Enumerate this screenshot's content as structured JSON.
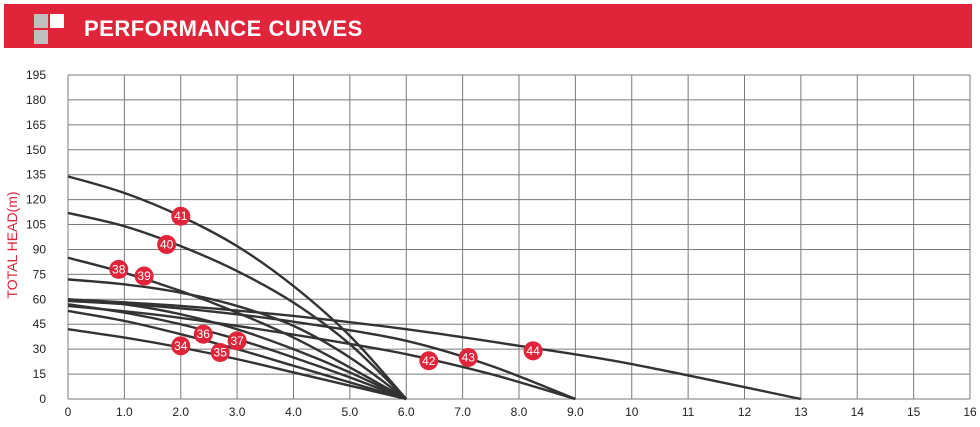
{
  "header": {
    "title": "PERFORMANCE CURVES"
  },
  "colors": {
    "accent": "#e0243a",
    "grid": "#7a7a7a",
    "curve": "#333333",
    "marker": "#e0243a",
    "logo_dark": "#bfbfbf",
    "logo_light": "#ffffff"
  },
  "chart_data": {
    "type": "line",
    "title": "",
    "xlabel": "",
    "ylabel": "TOTAL HEAD(m)",
    "xlim": [
      0,
      16
    ],
    "ylim": [
      0,
      195
    ],
    "grid": true,
    "x_ticks": [
      "0",
      "1.0",
      "2.0",
      "3.0",
      "4.0",
      "5.0",
      "6.0",
      "7.0",
      "8.0",
      "9.0",
      "10",
      "11",
      "12",
      "13",
      "14",
      "15",
      "16"
    ],
    "y_ticks": [
      "0",
      "15",
      "30",
      "45",
      "60",
      "75",
      "90",
      "105",
      "120",
      "135",
      "150",
      "165",
      "180",
      "195"
    ],
    "series": [
      {
        "name": "34",
        "x": [
          0,
          1,
          2,
          3,
          4,
          5,
          6
        ],
        "y": [
          42,
          37,
          31,
          24,
          16,
          8,
          0
        ],
        "label_at": [
          2.0,
          32
        ]
      },
      {
        "name": "35",
        "x": [
          0,
          1,
          2,
          3,
          4,
          5,
          6
        ],
        "y": [
          53,
          47,
          39,
          30,
          20,
          10,
          0
        ],
        "label_at": [
          2.7,
          28
        ]
      },
      {
        "name": "36",
        "x": [
          0,
          1,
          2,
          3,
          4,
          5,
          6
        ],
        "y": [
          57,
          52,
          45,
          36,
          25,
          13,
          0
        ],
        "label_at": [
          2.4,
          39
        ]
      },
      {
        "name": "37",
        "x": [
          0,
          1,
          2,
          3,
          4,
          5,
          6
        ],
        "y": [
          60,
          57,
          51,
          42,
          30,
          16,
          0
        ],
        "label_at": [
          3.0,
          35
        ]
      },
      {
        "name": "38",
        "x": [
          0,
          1,
          2,
          3,
          4,
          5,
          6
        ],
        "y": [
          85,
          76,
          65,
          52,
          37,
          19,
          0
        ],
        "label_at": [
          0.9,
          78
        ]
      },
      {
        "name": "39",
        "x": [
          0,
          1,
          2,
          3,
          4,
          5,
          6
        ],
        "y": [
          72,
          69,
          64,
          56,
          44,
          25,
          0
        ],
        "label_at": [
          1.35,
          74
        ]
      },
      {
        "name": "40",
        "x": [
          0,
          1,
          2,
          3,
          4,
          5,
          6
        ],
        "y": [
          112,
          104,
          92,
          77,
          58,
          33,
          0
        ],
        "label_at": [
          1.75,
          93
        ]
      },
      {
        "name": "41",
        "x": [
          0,
          1,
          2,
          3,
          4,
          5,
          6
        ],
        "y": [
          134,
          124,
          110,
          92,
          68,
          38,
          0
        ],
        "label_at": [
          2.0,
          110
        ]
      },
      {
        "name": "42",
        "x": [
          0,
          1.5,
          3,
          4.5,
          6,
          7.5,
          9
        ],
        "y": [
          56,
          51,
          44,
          36,
          27,
          15,
          0
        ],
        "label_at": [
          6.4,
          23
        ]
      },
      {
        "name": "43",
        "x": [
          0,
          1.5,
          3,
          4.5,
          6,
          7.5,
          9
        ],
        "y": [
          59,
          56,
          51,
          44,
          35,
          20,
          0
        ],
        "label_at": [
          7.1,
          25
        ]
      },
      {
        "name": "44",
        "x": [
          0,
          2,
          4,
          6,
          8,
          10,
          13
        ],
        "y": [
          60,
          56,
          50,
          42,
          32,
          21,
          0
        ],
        "label_at": [
          8.25,
          29
        ]
      }
    ]
  }
}
